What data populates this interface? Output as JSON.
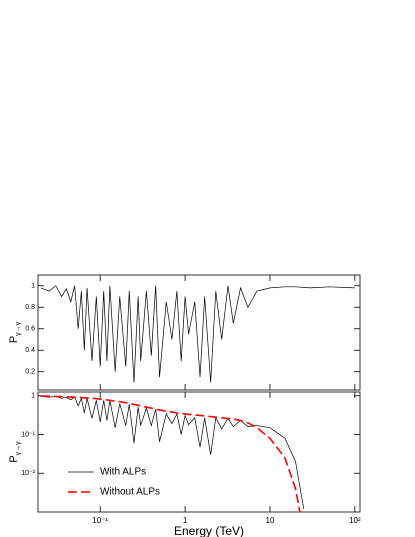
{
  "chart_data": [
    {
      "type": "line",
      "ylabel": {
        "main": "P",
        "sub": "γ→γ"
      },
      "x": [
        0.02,
        0.025,
        0.03,
        0.035,
        0.04,
        0.045,
        0.05,
        0.055,
        0.06,
        0.065,
        0.07,
        0.08,
        0.09,
        0.1,
        0.11,
        0.12,
        0.13,
        0.15,
        0.17,
        0.2,
        0.22,
        0.25,
        0.28,
        0.3,
        0.35,
        0.4,
        0.45,
        0.5,
        0.6,
        0.7,
        0.8,
        0.9,
        1.0,
        1.1,
        1.3,
        1.5,
        1.7,
        2.0,
        2.3,
        2.7,
        3.2,
        3.7,
        4.5,
        5.5,
        7,
        10,
        15,
        20,
        30,
        50,
        100
      ],
      "series": [
        {
          "color": "#000000",
          "dash": false,
          "values": [
            0.98,
            0.95,
            1.0,
            0.9,
            0.97,
            0.85,
            1.0,
            0.6,
            0.95,
            0.4,
            0.98,
            0.3,
            0.9,
            0.25,
            0.95,
            0.3,
            1.0,
            0.2,
            0.9,
            0.25,
            0.95,
            0.1,
            0.9,
            0.3,
            0.95,
            0.35,
            1.0,
            0.15,
            0.85,
            0.5,
            0.95,
            0.3,
            0.9,
            0.55,
            0.85,
            0.15,
            0.9,
            0.1,
            0.95,
            0.5,
            1.0,
            0.65,
            0.98,
            0.8,
            0.95,
            0.98,
            0.99,
            0.99,
            0.98,
            0.99,
            0.98
          ]
        }
      ],
      "xscale": "log",
      "yscale": "linear",
      "xlim": [
        0.0185,
        115
      ],
      "ylim": [
        0.03,
        1.1
      ],
      "xticks": [
        0.1,
        1,
        10,
        100
      ],
      "yticks": [
        0.2,
        0.4,
        0.6,
        0.8,
        1
      ]
    },
    {
      "type": "line",
      "ylabel": {
        "main": "P",
        "sub": "γ→γ"
      },
      "xlabel": "Energy (TeV)",
      "x": [
        0.02,
        0.025,
        0.03,
        0.035,
        0.04,
        0.045,
        0.05,
        0.055,
        0.06,
        0.065,
        0.07,
        0.08,
        0.09,
        0.1,
        0.11,
        0.12,
        0.13,
        0.15,
        0.17,
        0.2,
        0.22,
        0.25,
        0.28,
        0.3,
        0.35,
        0.4,
        0.45,
        0.5,
        0.6,
        0.7,
        0.8,
        0.9,
        1.0,
        1.1,
        1.3,
        1.5,
        1.7,
        2.0,
        2.3,
        2.7,
        3.2,
        3.7,
        4.5,
        5.5,
        7,
        10,
        15,
        20,
        25
      ],
      "series": [
        {
          "name": "With ALPs",
          "color": "#000000",
          "dash": false,
          "values": [
            0.96,
            0.92,
            0.96,
            0.86,
            0.91,
            0.79,
            0.92,
            0.55,
            0.86,
            0.36,
            0.86,
            0.26,
            0.76,
            0.21,
            0.76,
            0.23,
            0.76,
            0.15,
            0.63,
            0.17,
            0.6,
            0.06,
            0.51,
            0.17,
            0.48,
            0.17,
            0.45,
            0.065,
            0.34,
            0.19,
            0.34,
            0.1,
            0.31,
            0.18,
            0.27,
            0.047,
            0.27,
            0.03,
            0.27,
            0.14,
            0.26,
            0.16,
            0.23,
            0.16,
            0.17,
            0.15,
            0.08,
            0.02,
            0.0012
          ]
        },
        {
          "name": "Without ALPs",
          "color": "#ff0000",
          "dash": true,
          "values": [
            0.98,
            0.97,
            0.96,
            0.95,
            0.94,
            0.93,
            0.92,
            0.91,
            0.9,
            0.89,
            0.88,
            0.86,
            0.84,
            0.82,
            0.8,
            0.78,
            0.76,
            0.73,
            0.7,
            0.66,
            0.63,
            0.6,
            0.57,
            0.55,
            0.51,
            0.48,
            0.45,
            0.43,
            0.4,
            0.38,
            0.36,
            0.35,
            0.34,
            0.33,
            0.32,
            0.31,
            0.3,
            0.29,
            0.28,
            0.27,
            0.26,
            0.25,
            0.23,
            0.2,
            0.15,
            0.08,
            0.025,
            0.004,
            0.0003
          ]
        }
      ],
      "xscale": "log",
      "yscale": "log",
      "xlim": [
        0.0185,
        115
      ],
      "ylim": [
        0.001,
        1.25
      ],
      "xticks": [
        {
          "value": 0.1,
          "label": "10⁻¹"
        },
        1,
        10,
        {
          "value": 100,
          "label": "10²"
        }
      ],
      "yticks": [
        {
          "value": 0.01,
          "label": "10⁻²"
        },
        {
          "value": 0.1,
          "label": "10⁻¹"
        },
        1
      ],
      "legend": "lower left"
    }
  ]
}
